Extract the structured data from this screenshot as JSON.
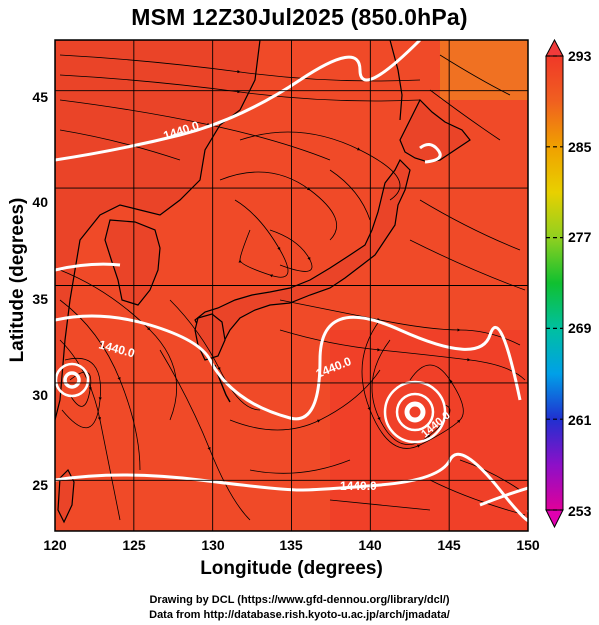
{
  "title": "MSM 12Z30Jul2025 (850.0hPa)",
  "xlabel": "Longitude (degrees)",
  "ylabel": "Latitude  (degrees)",
  "x_ticks": [
    "120",
    "125",
    "130",
    "135",
    "140",
    "145",
    "150"
  ],
  "y_ticks": [
    "45",
    "40",
    "35",
    "30",
    "25"
  ],
  "colorbar": {
    "ticks": [
      "293",
      "285",
      "277",
      "269",
      "261",
      "253"
    ],
    "min": 253,
    "max": 293,
    "colors": [
      "#e0009a",
      "#8c10c8",
      "#2030d0",
      "#00a0e8",
      "#00c0a0",
      "#10c030",
      "#90d020",
      "#e8d000",
      "#f0a000",
      "#f06020",
      "#f03828"
    ]
  },
  "contour_labels": [
    "1440.0",
    "1440.0",
    "1440.0",
    "1440.0",
    "1440.0"
  ],
  "map": {
    "lon_range": [
      120,
      150
    ],
    "lat_range": [
      22.4,
      47.6
    ],
    "field_color": "#f04a28",
    "contour_color": "#ffffff"
  },
  "credits": [
    "Drawing by DCL (https://www.gfd-dennou.org/library/dcl/)",
    "Data from http://database.rish.kyoto-u.ac.jp/arch/jmadata/"
  ]
}
